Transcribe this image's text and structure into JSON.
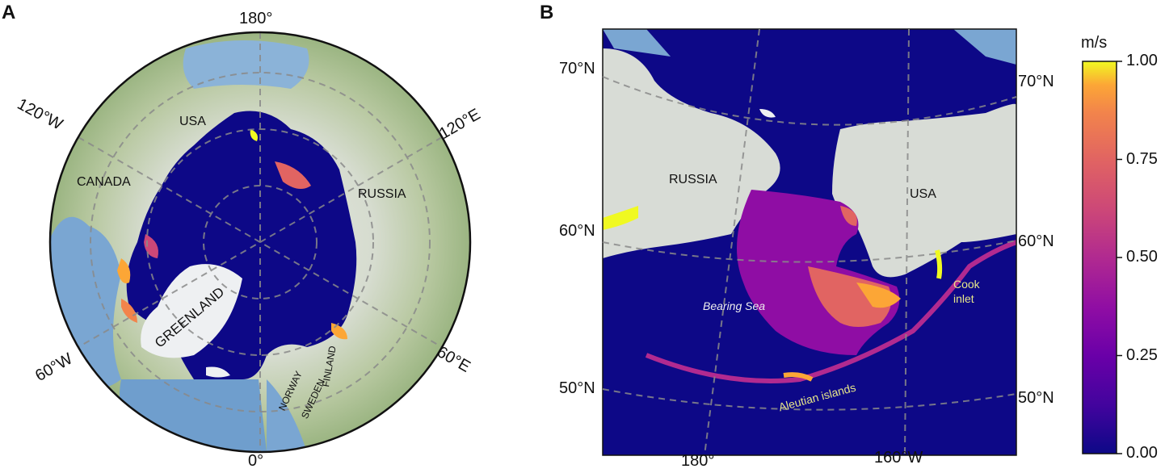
{
  "panel_a": {
    "letter": "A",
    "graticule_labels": {
      "lon_180": "180°",
      "lon_0": "0°",
      "lon_120w": "120°W",
      "lon_120e": "120°E",
      "lon_60w": "60°W",
      "lon_60e": "60°E"
    },
    "countries": {
      "usa": "USA",
      "canada": "CANADA",
      "russia": "RUSSIA",
      "greenland": "GREENLAND",
      "norway": "NORWAY",
      "sweden": "SWEDEN",
      "finland": "FINLAND"
    }
  },
  "panel_b": {
    "letter": "B",
    "lat_labels": {
      "left_70": "70°N",
      "left_60": "60°N",
      "left_50": "50°N",
      "right_70": "70°N",
      "right_60": "60°N",
      "right_50": "50°N"
    },
    "lon_labels": {
      "lon_180": "180°",
      "lon_160w": "160°W"
    },
    "countries": {
      "russia": "RUSSIA",
      "usa": "USA"
    },
    "annotations": {
      "bering_sea": "Bearing Sea",
      "cook_inlet_line1": "Cook",
      "cook_inlet_line2": "inlet",
      "aleutian": "Aleutian   islands"
    }
  },
  "colorbar": {
    "unit": "m/s",
    "ticks": [
      "1.00",
      "0.75",
      "0.50",
      "0.25",
      "0.00"
    ],
    "range": [
      0,
      1
    ],
    "colormap": "plasma"
  },
  "colors": {
    "ocean_low": "#0d0887",
    "land": "#d8dcd6",
    "ocean_background": "#6f9ecd",
    "plasma_mid": "#cc4778",
    "plasma_high": "#f0f921",
    "annotation_yellow": "#e6e68a"
  }
}
